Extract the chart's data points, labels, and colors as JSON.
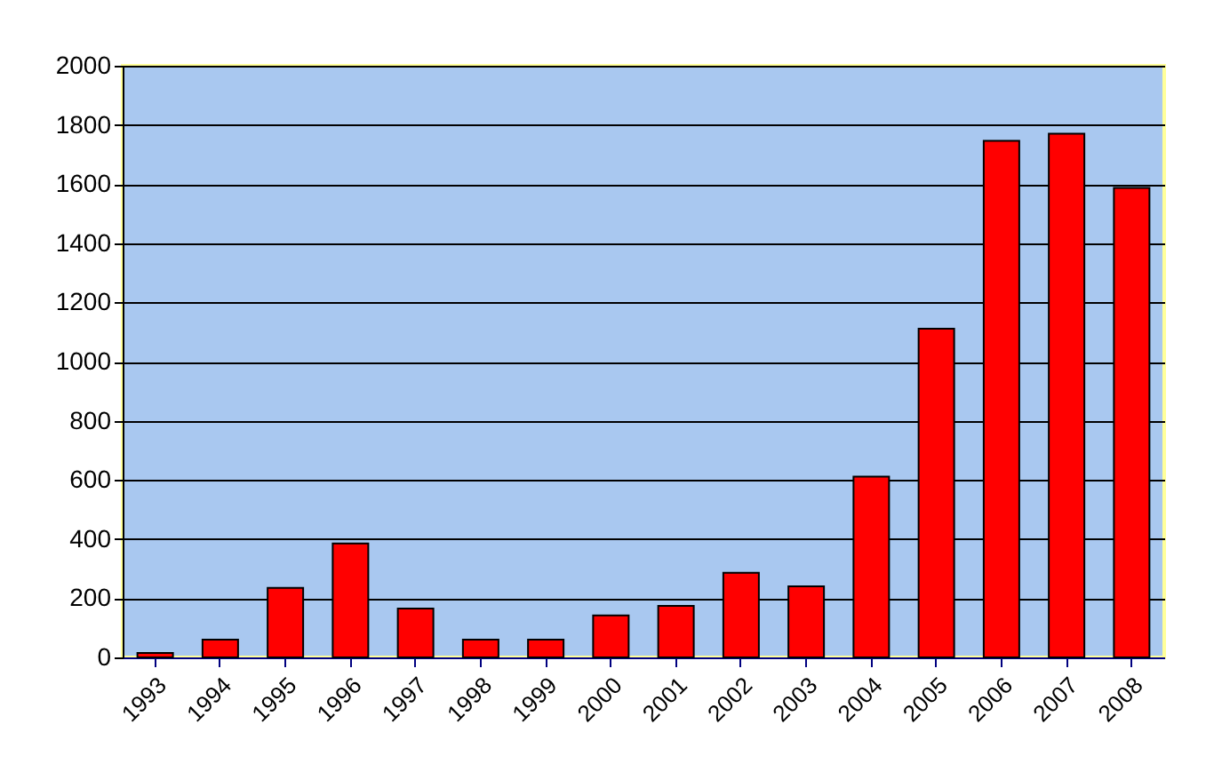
{
  "chart_data": {
    "type": "bar",
    "categories": [
      "1993",
      "1994",
      "1995",
      "1996",
      "1997",
      "1998",
      "1999",
      "2000",
      "2001",
      "2002",
      "2003",
      "2004",
      "2005",
      "2006",
      "2007",
      "2008"
    ],
    "values": [
      15,
      60,
      235,
      385,
      165,
      60,
      60,
      142,
      174,
      286,
      240,
      611,
      1111,
      1746,
      1770,
      1587
    ],
    "color": "#ff0000",
    "ylim": [
      0,
      2000
    ],
    "yticks": [
      0,
      200,
      400,
      600,
      800,
      1000,
      1200,
      1400,
      1600,
      1800,
      2000
    ],
    "grid": "y"
  }
}
